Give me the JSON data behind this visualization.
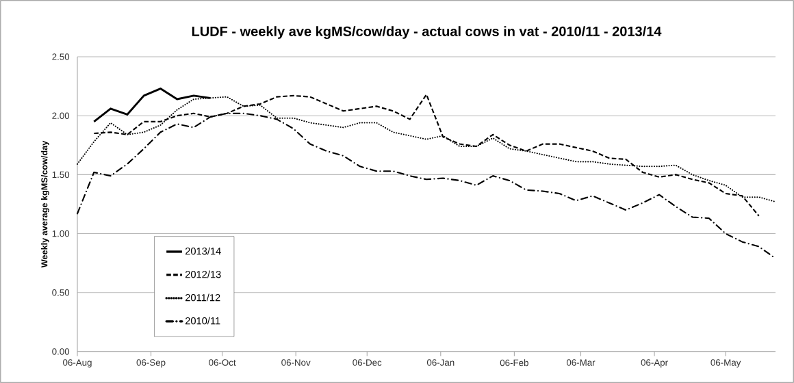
{
  "chart_data": {
    "type": "line",
    "title": "LUDF - weekly ave kgMS/cow/day - actual cows in vat - 2010/11 - 2013/14",
    "ylabel": "Weekly average kgMS/cow/day",
    "xlim": [
      "2013-08-06",
      "2014-05-27"
    ],
    "ylim": [
      0,
      2.5
    ],
    "xticks": [
      {
        "value": "2013-08-06",
        "label": "06-Aug"
      },
      {
        "value": "2013-09-06",
        "label": "06-Sep"
      },
      {
        "value": "2013-10-06",
        "label": "06-Oct"
      },
      {
        "value": "2013-11-06",
        "label": "06-Nov"
      },
      {
        "value": "2013-12-06",
        "label": "06-Dec"
      },
      {
        "value": "2014-01-06",
        "label": "06-Jan"
      },
      {
        "value": "2014-02-06",
        "label": "06-Feb"
      },
      {
        "value": "2014-03-06",
        "label": "06-Mar"
      },
      {
        "value": "2014-04-06",
        "label": "06-Apr"
      },
      {
        "value": "2014-05-06",
        "label": "06-May"
      }
    ],
    "yticks": [
      {
        "value": 0,
        "label": "0.00"
      },
      {
        "value": 0.5,
        "label": "0.50"
      },
      {
        "value": 1,
        "label": "1.00"
      },
      {
        "value": 1.5,
        "label": "1.50"
      },
      {
        "value": 2,
        "label": "2.00"
      },
      {
        "value": 2.5,
        "label": "2.50"
      }
    ],
    "x": [
      "2013-08-06",
      "2013-08-13",
      "2013-08-20",
      "2013-08-27",
      "2013-09-03",
      "2013-09-10",
      "2013-09-17",
      "2013-09-24",
      "2013-10-01",
      "2013-10-08",
      "2013-10-15",
      "2013-10-22",
      "2013-10-29",
      "2013-11-05",
      "2013-11-12",
      "2013-11-19",
      "2013-11-26",
      "2013-12-03",
      "2013-12-10",
      "2013-12-17",
      "2013-12-24",
      "2013-12-31",
      "2014-01-07",
      "2014-01-14",
      "2014-01-21",
      "2014-01-28",
      "2014-02-04",
      "2014-02-11",
      "2014-02-18",
      "2014-02-25",
      "2014-03-04",
      "2014-03-11",
      "2014-03-18",
      "2014-03-25",
      "2014-04-01",
      "2014-04-08",
      "2014-04-15",
      "2014-04-22",
      "2014-04-29",
      "2014-05-06",
      "2014-05-13",
      "2014-05-20",
      "2014-05-27"
    ],
    "grid": "y",
    "legend": "bottom left",
    "marker": "none",
    "series": [
      {
        "name": "2013/14",
        "color": "#000000",
        "line_style": "solid",
        "values": [
          null,
          1.95,
          2.06,
          2.01,
          2.17,
          2.23,
          2.14,
          2.17,
          2.15,
          null,
          null,
          null,
          null,
          null,
          null,
          null,
          null,
          null,
          null,
          null,
          null,
          null,
          null,
          null,
          null,
          null,
          null,
          null,
          null,
          null,
          null,
          null,
          null,
          null,
          null,
          null,
          null,
          null,
          null,
          null,
          null,
          null,
          null
        ]
      },
      {
        "name": "2012/13",
        "color": "#000000",
        "line_style": "dashed",
        "values": [
          null,
          1.85,
          1.86,
          1.84,
          1.95,
          1.95,
          2.0,
          2.02,
          1.99,
          2.02,
          2.08,
          2.1,
          2.16,
          2.17,
          2.16,
          2.1,
          2.04,
          2.06,
          2.08,
          2.04,
          1.97,
          2.18,
          1.82,
          1.76,
          1.74,
          1.84,
          1.75,
          1.7,
          1.76,
          1.76,
          1.73,
          1.7,
          1.64,
          1.63,
          1.52,
          1.48,
          1.5,
          1.46,
          1.43,
          1.34,
          1.32,
          1.15,
          null
        ]
      },
      {
        "name": "2011/12",
        "color": "#000000",
        "line_style": "dotted",
        "values": [
          1.59,
          1.78,
          1.94,
          1.84,
          1.86,
          1.92,
          2.05,
          2.14,
          2.15,
          2.16,
          2.08,
          2.09,
          1.98,
          1.98,
          1.94,
          1.92,
          1.9,
          1.94,
          1.94,
          1.86,
          1.83,
          1.8,
          1.83,
          1.74,
          1.74,
          1.81,
          1.72,
          1.7,
          1.67,
          1.64,
          1.61,
          1.61,
          1.59,
          1.58,
          1.57,
          1.57,
          1.58,
          1.5,
          1.45,
          1.41,
          1.31,
          1.31,
          1.27
        ]
      },
      {
        "name": "2010/11",
        "color": "#000000",
        "line_style": "dashdot",
        "values": [
          1.17,
          1.52,
          1.49,
          1.59,
          1.72,
          1.86,
          1.93,
          1.9,
          1.99,
          2.02,
          2.02,
          2.0,
          1.97,
          1.89,
          1.76,
          1.7,
          1.66,
          1.57,
          1.53,
          1.53,
          1.49,
          1.46,
          1.47,
          1.45,
          1.41,
          1.49,
          1.45,
          1.37,
          1.36,
          1.34,
          1.28,
          1.32,
          1.26,
          1.2,
          1.26,
          1.33,
          1.23,
          1.14,
          1.13,
          1.0,
          0.93,
          0.89,
          0.79
        ]
      }
    ]
  }
}
